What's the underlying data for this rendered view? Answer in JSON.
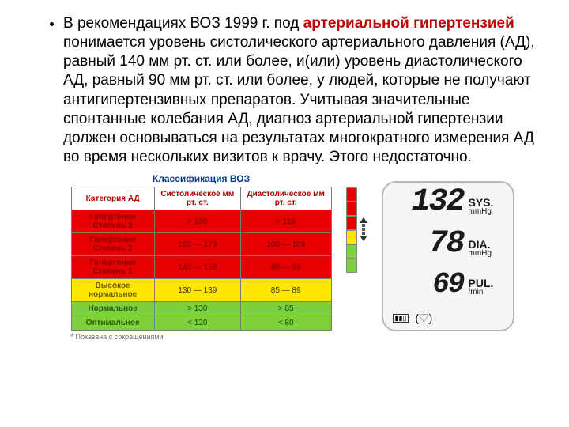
{
  "paragraph": {
    "lead": "В рекомендациях ВОЗ 1999 г. под ",
    "term": "артериальной гипертензией",
    "rest": " понимается уровень систолического артериального давления (АД), равный 140 мм рт. ст. или более, и(или) уровень   диастолического АД, равный  90 мм рт. ст. или более, у людей, которые не получают антигипертензивных препаратов. Учитывая значительные спонтанные колебания АД, диагноз артериальной гипертензии должен основываться на результатах многократного измерения АД во время нескольких визитов к врачу. Этого недостаточно."
  },
  "classification": {
    "title": "Классификация ВОЗ",
    "headers": {
      "category": "Категория АД",
      "sys": "Систолическое мм рт. ст.",
      "dia": "Диастолическое мм рт. ст."
    },
    "rows": [
      {
        "cat": "Гипертония Степень 3",
        "sys": "> 180",
        "dia": "> 110",
        "bg": "#e60000",
        "fg": "#720000",
        "catfg": "#8a0000"
      },
      {
        "cat": "Гипертония Степень 2",
        "sys": "160 — 179",
        "dia": "100 — 109",
        "bg": "#e60000",
        "fg": "#720000",
        "catfg": "#8a0000"
      },
      {
        "cat": "Гипертония Степень 1",
        "sys": "140 — 159",
        "dia": "90 — 99",
        "bg": "#e60000",
        "fg": "#720000",
        "catfg": "#8a0000"
      },
      {
        "cat": "Высокое нормальное",
        "sys": "130 — 139",
        "dia": "85 — 89",
        "bg": "#ffe600",
        "fg": "#3a3a00",
        "catfg": "#6b5a00"
      },
      {
        "cat": "Нормальное",
        "sys": "> 130",
        "dia": "> 85",
        "bg": "#7fd13b",
        "fg": "#154a00",
        "catfg": "#2a5a00"
      },
      {
        "cat": "Оптимальное",
        "sys": "< 120",
        "dia": "< 80",
        "bg": "#7fd13b",
        "fg": "#154a00",
        "catfg": "#2a5a00"
      }
    ],
    "footnote": "* Показана с сокращениями"
  },
  "bar": {
    "segments": [
      {
        "color": "#e60000",
        "h": 18
      },
      {
        "color": "#e60000",
        "h": 18
      },
      {
        "color": "#e60000",
        "h": 18
      },
      {
        "color": "#ffe600",
        "h": 18
      },
      {
        "color": "#7fd13b",
        "h": 18
      },
      {
        "color": "#7fd13b",
        "h": 18
      }
    ]
  },
  "device": {
    "sys": {
      "value": "132",
      "label": "SYS.",
      "unit": "mmHg"
    },
    "dia": {
      "value": "78",
      "label": "DIA.",
      "unit": "mmHg"
    },
    "pul": {
      "value": "69",
      "label": "PUL.",
      "unit": "/min"
    },
    "icons": {
      "battery": "▮▮▯",
      "heart": "♡"
    }
  }
}
